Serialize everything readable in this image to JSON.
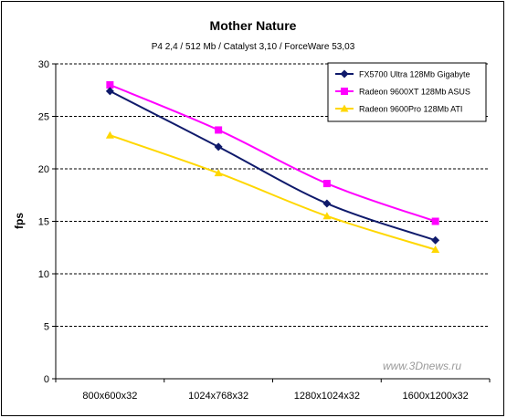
{
  "chart_data": {
    "type": "line",
    "title": "Mother Nature",
    "subtitle": "P4 2,4 / 512 Mb / Catalyst 3,10 / ForceWare 53,03",
    "ylabel": "fps",
    "xlabel": "",
    "categories": [
      "800x600x32",
      "1024x768x32",
      "1280x1024x32",
      "1600x1200x32"
    ],
    "ylim": [
      0,
      30
    ],
    "yticks": [
      0,
      5,
      10,
      15,
      20,
      25,
      30
    ],
    "grid": "horizontal dashed",
    "legend_position": "top-right",
    "series": [
      {
        "name": "FX5700 Ultra 128Mb Gigabyte",
        "color": "#0f1a6b",
        "marker": "diamond",
        "values": [
          27.4,
          22.1,
          16.7,
          13.2
        ]
      },
      {
        "name": "Radeon 9600XT 128Mb ASUS",
        "color": "#ff00ff",
        "marker": "square",
        "values": [
          28.0,
          23.7,
          18.6,
          15.0
        ]
      },
      {
        "name": "Radeon 9600Pro 128Mb ATI",
        "color": "#ffd700",
        "marker": "triangle",
        "values": [
          23.2,
          19.6,
          15.5,
          12.3
        ]
      }
    ]
  },
  "watermark": "www.3Dnews.ru"
}
